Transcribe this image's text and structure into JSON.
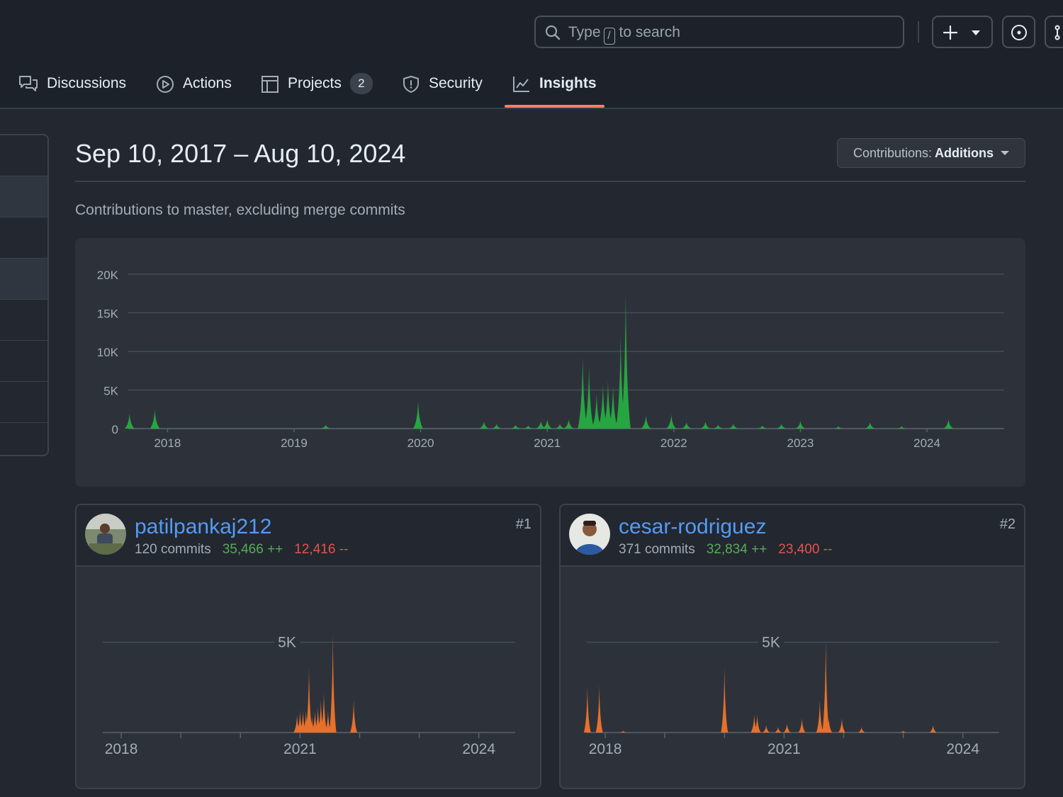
{
  "header": {
    "search": {
      "prefix": "Type",
      "key": "/",
      "suffix": "to search"
    }
  },
  "tabs": [
    {
      "label": "Discussions",
      "icon": "comment-discussion-icon"
    },
    {
      "label": "Actions",
      "icon": "play-icon"
    },
    {
      "label": "Projects",
      "icon": "table-icon",
      "count": "2"
    },
    {
      "label": "Security",
      "icon": "shield-icon"
    },
    {
      "label": "Insights",
      "icon": "graph-icon",
      "active": true
    }
  ],
  "page": {
    "date_range": "Sep 10, 2017 – Aug 10, 2024",
    "contrib_prefix": "Contributions:",
    "contrib_value": "Additions",
    "subtitle": "Contributions to master, excluding merge commits"
  },
  "colors": {
    "accent_tab": "#f78166",
    "main_area": "#26a641",
    "user_area": "#e8702a",
    "link": "#539bf5",
    "additions": "#57ab5a",
    "deletions": "#e5534b"
  },
  "chart_data": [
    {
      "type": "area",
      "grid": true,
      "ylim": [
        0,
        20000
      ],
      "yticks": [
        "20K",
        "15K",
        "10K",
        "5K",
        "0"
      ],
      "xticks": [
        "2018",
        "2019",
        "2020",
        "2021",
        "2022",
        "2023",
        "2024"
      ],
      "x": [
        2017.7,
        2017.9,
        2019.25,
        2019.98,
        2020.5,
        2020.6,
        2020.75,
        2020.85,
        2020.95,
        2021.0,
        2021.1,
        2021.17,
        2021.28,
        2021.33,
        2021.39,
        2021.44,
        2021.48,
        2021.52,
        2021.58,
        2021.62,
        2021.78,
        2021.98,
        2022.1,
        2022.25,
        2022.35,
        2022.47,
        2022.7,
        2022.85,
        2023.0,
        2023.3,
        2023.55,
        2023.8,
        2024.17
      ],
      "values": [
        2000,
        2500,
        500,
        3500,
        900,
        600,
        500,
        400,
        1000,
        1200,
        600,
        1200,
        9200,
        8000,
        4500,
        5800,
        6200,
        5500,
        12000,
        17500,
        1700,
        1800,
        800,
        900,
        500,
        600,
        400,
        600,
        1000,
        300,
        800,
        300,
        1200
      ]
    },
    {
      "type": "area",
      "user": "patilpankaj212",
      "grid": true,
      "ylim": [
        0,
        10000
      ],
      "yticks": [
        "5K"
      ],
      "xticks": [
        "2018",
        "2021",
        "2024"
      ],
      "x": [
        2020.95,
        2021.0,
        2021.05,
        2021.1,
        2021.15,
        2021.2,
        2021.25,
        2021.3,
        2021.35,
        2021.4,
        2021.47,
        2021.55,
        2021.9
      ],
      "values": [
        1000,
        1200,
        1200,
        1200,
        3600,
        900,
        1200,
        1400,
        1800,
        2200,
        1200,
        5500,
        1800
      ]
    },
    {
      "type": "area",
      "user": "cesar-rodriguez",
      "grid": true,
      "ylim": [
        0,
        10000
      ],
      "yticks": [
        "5K"
      ],
      "xticks": [
        "2018",
        "2021",
        "2024"
      ],
      "x": [
        2017.7,
        2017.9,
        2018.3,
        2020.0,
        2020.5,
        2020.55,
        2020.7,
        2020.9,
        2021.05,
        2021.3,
        2021.6,
        2021.7,
        2021.75,
        2021.97,
        2022.3,
        2023.0,
        2023.5
      ],
      "values": [
        2500,
        2600,
        100,
        3600,
        1000,
        1000,
        400,
        300,
        500,
        800,
        1800,
        5200,
        800,
        800,
        300,
        100,
        400
      ]
    }
  ],
  "contributors": [
    {
      "username": "patilpankaj212",
      "commits": "120 commits",
      "additions": "35,466 ++",
      "deletions": "12,416 --",
      "rank": "#1"
    },
    {
      "username": "cesar-rodriguez",
      "commits": "371 commits",
      "additions": "32,834 ++",
      "deletions": "23,400 --",
      "rank": "#2"
    }
  ]
}
